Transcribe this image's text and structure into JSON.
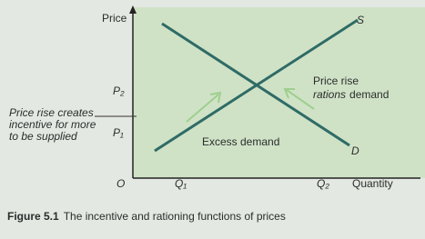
{
  "diagram": {
    "axes": {
      "y_label": "Price",
      "x_label": "Quantity",
      "origin": "O"
    },
    "curves": {
      "supply": "S",
      "demand": "D"
    },
    "y_marks": [
      "P₂",
      "P₁"
    ],
    "x_marks": [
      "Q₁",
      "Q₂"
    ],
    "left_note": [
      "Price rise creates",
      "incentive for more",
      "to be supplied"
    ],
    "right_note": {
      "first": "Price rise",
      "italic": "rations",
      "rest": "demand"
    },
    "center_note": "Excess demand"
  },
  "caption": {
    "label": "Figure 5.1",
    "text": "The incentive and rationing functions of prices"
  }
}
